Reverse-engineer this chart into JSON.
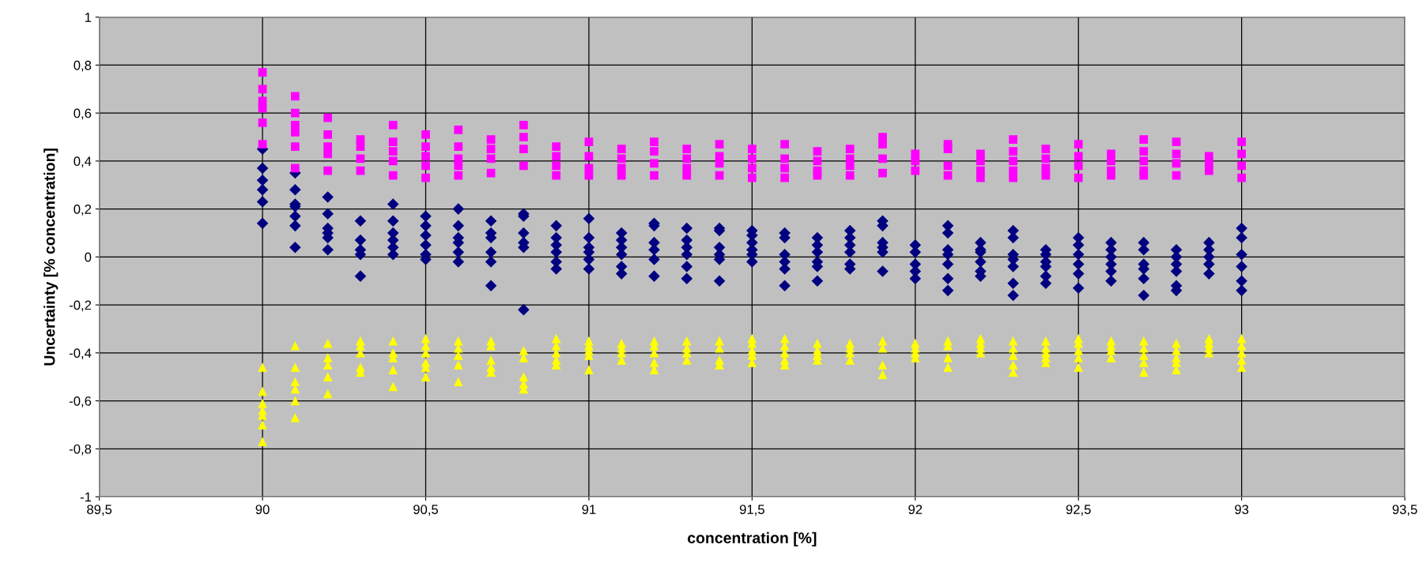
{
  "chart_data": {
    "type": "scatter",
    "xlabel": "concentration [%]",
    "ylabel": "Uncertainty [% concentration]",
    "xlim": [
      89.5,
      93.5
    ],
    "ylim": [
      -1,
      1
    ],
    "xticks": [
      {
        "value": 89.5,
        "label": "89,5"
      },
      90,
      {
        "value": 90.5,
        "label": "90,5"
      },
      91,
      {
        "value": 91.5,
        "label": "91,5"
      },
      92,
      {
        "value": 92.5,
        "label": "92,5"
      },
      93,
      {
        "value": 93.5,
        "label": "93,5"
      }
    ],
    "yticks": [
      -1,
      {
        "value": -0.8,
        "label": "-0,8"
      },
      {
        "value": -0.6,
        "label": "-0,6"
      },
      {
        "value": -0.4,
        "label": "-0,4"
      },
      {
        "value": -0.2,
        "label": "-0,2"
      },
      0,
      {
        "value": 0.2,
        "label": "0,2"
      },
      {
        "value": 0.4,
        "label": "0,4"
      },
      {
        "value": 0.6,
        "label": "0,6"
      },
      {
        "value": 0.8,
        "label": "0,8"
      },
      1
    ],
    "grid": true,
    "series": [
      {
        "color": "#000080",
        "marker": "diamond",
        "x": [
          90,
          90,
          90,
          90,
          90,
          90,
          90.1,
          90.1,
          90.1,
          90.1,
          90.1,
          90.1,
          90.1,
          90.2,
          90.2,
          90.2,
          90.2,
          90.2,
          90.2,
          90.3,
          90.3,
          90.3,
          90.3,
          90.3,
          90.4,
          90.4,
          90.4,
          90.4,
          90.4,
          90.4,
          90.5,
          90.5,
          90.5,
          90.5,
          90.5,
          90.5,
          90.6,
          90.6,
          90.6,
          90.6,
          90.6,
          90.6,
          90.7,
          90.7,
          90.7,
          90.7,
          90.7,
          90.7,
          90.8,
          90.8,
          90.8,
          90.8,
          90.8,
          90.8,
          90.9,
          90.9,
          90.9,
          90.9,
          90.9,
          90.9,
          91,
          91,
          91,
          91,
          91,
          91,
          91.1,
          91.1,
          91.1,
          91.1,
          91.1,
          91.1,
          91.2,
          91.2,
          91.2,
          91.2,
          91.2,
          91.2,
          91.3,
          91.3,
          91.3,
          91.3,
          91.3,
          91.3,
          91.4,
          91.4,
          91.4,
          91.4,
          91.4,
          91.4,
          91.5,
          91.5,
          91.5,
          91.5,
          91.5,
          91.5,
          91.6,
          91.6,
          91.6,
          91.6,
          91.6,
          91.6,
          91.7,
          91.7,
          91.7,
          91.7,
          91.7,
          91.7,
          91.8,
          91.8,
          91.8,
          91.8,
          91.8,
          91.8,
          91.9,
          91.9,
          91.9,
          91.9,
          91.9,
          91.9,
          92,
          92,
          92,
          92,
          92,
          92.1,
          92.1,
          92.1,
          92.1,
          92.1,
          92.1,
          92.1,
          92.2,
          92.2,
          92.2,
          92.2,
          92.2,
          92.2,
          92.3,
          92.3,
          92.3,
          92.3,
          92.3,
          92.3,
          92.3,
          92.4,
          92.4,
          92.4,
          92.4,
          92.4,
          92.4,
          92.5,
          92.5,
          92.5,
          92.5,
          92.5,
          92.5,
          92.6,
          92.6,
          92.6,
          92.6,
          92.6,
          92.6,
          92.7,
          92.7,
          92.7,
          92.7,
          92.7,
          92.7,
          92.8,
          92.8,
          92.8,
          92.8,
          92.8,
          92.8,
          92.9,
          92.9,
          92.9,
          92.9,
          92.9,
          93,
          93,
          93,
          93,
          93,
          93
        ],
        "values": [
          0.45,
          0.37,
          0.32,
          0.28,
          0.23,
          0.14,
          0.35,
          0.28,
          0.22,
          0.21,
          0.17,
          0.13,
          0.04,
          0.25,
          0.18,
          0.12,
          0.1,
          0.08,
          0.03,
          0.15,
          0.07,
          0.03,
          0.01,
          -0.08,
          0.22,
          0.15,
          0.1,
          0.07,
          0.04,
          0.01,
          0.17,
          0.13,
          0.09,
          0.05,
          0.01,
          -0.01,
          0.2,
          0.13,
          0.08,
          0.06,
          0.02,
          -0.02,
          0.15,
          0.1,
          0.08,
          0.02,
          -0.02,
          -0.12,
          0.18,
          0.17,
          0.1,
          0.06,
          0.04,
          -0.22,
          0.13,
          0.08,
          0.05,
          0.02,
          -0.02,
          -0.05,
          0.16,
          0.08,
          0.04,
          0.02,
          -0.01,
          -0.05,
          0.1,
          0.07,
          0.04,
          0.01,
          -0.04,
          -0.07,
          0.14,
          0.13,
          0.06,
          0.03,
          -0.01,
          -0.08,
          0.12,
          0.07,
          0.04,
          0.01,
          -0.04,
          -0.09,
          0.12,
          0.11,
          0.04,
          0.01,
          -0.01,
          -0.1,
          0.11,
          0.09,
          0.06,
          0.03,
          0.01,
          -0.02,
          0.1,
          0.08,
          0.01,
          -0.02,
          -0.05,
          -0.12,
          0.08,
          0.05,
          0.02,
          -0.02,
          -0.04,
          -0.1,
          0.11,
          0.08,
          0.05,
          0.02,
          -0.03,
          -0.05,
          0.15,
          0.13,
          0.06,
          0.04,
          0.02,
          -0.06,
          0.05,
          0.02,
          -0.03,
          -0.06,
          -0.09,
          0.13,
          0.1,
          0.03,
          0.01,
          -0.03,
          -0.09,
          -0.14,
          0.06,
          0.03,
          0.02,
          -0.02,
          -0.06,
          -0.08,
          0.11,
          0.08,
          0.01,
          -0.01,
          -0.04,
          -0.11,
          -0.16,
          0.03,
          0.01,
          -0.02,
          -0.04,
          -0.08,
          -0.11,
          0.08,
          0.05,
          0.01,
          -0.03,
          -0.07,
          -0.13,
          0.06,
          0.03,
          0.0,
          -0.03,
          -0.06,
          -0.1,
          0.06,
          0.03,
          -0.03,
          -0.05,
          -0.09,
          -0.16,
          0.03,
          0.0,
          -0.03,
          -0.06,
          -0.12,
          -0.14,
          0.06,
          0.03,
          0.0,
          -0.03,
          -0.07,
          0.12,
          0.08,
          0.01,
          -0.04,
          -0.1,
          -0.14
        ]
      },
      {
        "color": "#ff00ff",
        "marker": "square",
        "x": [
          90,
          90,
          90,
          90,
          90,
          90,
          90.1,
          90.1,
          90.1,
          90.1,
          90.1,
          90.1,
          90.2,
          90.2,
          90.2,
          90.2,
          90.2,
          90.3,
          90.3,
          90.3,
          90.3,
          90.4,
          90.4,
          90.4,
          90.4,
          90.4,
          90.5,
          90.5,
          90.5,
          90.5,
          90.5,
          90.6,
          90.6,
          90.6,
          90.6,
          90.6,
          90.7,
          90.7,
          90.7,
          90.7,
          90.8,
          90.8,
          90.8,
          90.8,
          90.9,
          90.9,
          90.9,
          90.9,
          91,
          91,
          91,
          91,
          91.1,
          91.1,
          91.1,
          91.1,
          91.2,
          91.2,
          91.2,
          91.2,
          91.3,
          91.3,
          91.3,
          91.3,
          91.4,
          91.4,
          91.4,
          91.4,
          91.5,
          91.5,
          91.5,
          91.5,
          91.6,
          91.6,
          91.6,
          91.6,
          91.7,
          91.7,
          91.7,
          91.7,
          91.8,
          91.8,
          91.8,
          91.8,
          91.9,
          91.9,
          91.9,
          91.9,
          92,
          92,
          92,
          92.1,
          92.1,
          92.1,
          92.1,
          92.2,
          92.2,
          92.2,
          92.2,
          92.3,
          92.3,
          92.3,
          92.3,
          92.3,
          92.4,
          92.4,
          92.4,
          92.4,
          92.5,
          92.5,
          92.5,
          92.5,
          92.6,
          92.6,
          92.6,
          92.6,
          92.7,
          92.7,
          92.7,
          92.7,
          92.7,
          92.8,
          92.8,
          92.8,
          92.8,
          92.9,
          92.9,
          92.9,
          93,
          93,
          93,
          93
        ],
        "values": [
          0.77,
          0.7,
          0.65,
          0.62,
          0.56,
          0.47,
          0.67,
          0.6,
          0.55,
          0.52,
          0.46,
          0.37,
          0.58,
          0.51,
          0.46,
          0.43,
          0.36,
          0.49,
          0.46,
          0.41,
          0.36,
          0.55,
          0.48,
          0.44,
          0.4,
          0.34,
          0.51,
          0.46,
          0.42,
          0.38,
          0.33,
          0.53,
          0.46,
          0.41,
          0.38,
          0.34,
          0.49,
          0.45,
          0.41,
          0.35,
          0.55,
          0.5,
          0.45,
          0.38,
          0.46,
          0.42,
          0.38,
          0.34,
          0.48,
          0.42,
          0.37,
          0.34,
          0.45,
          0.41,
          0.37,
          0.34,
          0.48,
          0.44,
          0.39,
          0.34,
          0.45,
          0.41,
          0.37,
          0.34,
          0.47,
          0.42,
          0.39,
          0.34,
          0.45,
          0.41,
          0.37,
          0.33,
          0.47,
          0.41,
          0.37,
          0.33,
          0.44,
          0.4,
          0.36,
          0.34,
          0.45,
          0.41,
          0.38,
          0.34,
          0.5,
          0.47,
          0.41,
          0.35,
          0.43,
          0.4,
          0.36,
          0.47,
          0.45,
          0.38,
          0.34,
          0.43,
          0.4,
          0.36,
          0.33,
          0.49,
          0.44,
          0.4,
          0.36,
          0.33,
          0.45,
          0.41,
          0.37,
          0.34,
          0.47,
          0.42,
          0.38,
          0.33,
          0.43,
          0.4,
          0.36,
          0.34,
          0.49,
          0.44,
          0.4,
          0.36,
          0.34,
          0.48,
          0.43,
          0.39,
          0.34,
          0.42,
          0.39,
          0.36,
          0.48,
          0.43,
          0.38,
          0.33
        ]
      },
      {
        "color": "#ffff00",
        "marker": "triangle",
        "x": [
          90,
          90,
          90,
          90,
          90,
          90,
          90,
          90.1,
          90.1,
          90.1,
          90.1,
          90.1,
          90.1,
          90.2,
          90.2,
          90.2,
          90.2,
          90.2,
          90.3,
          90.3,
          90.3,
          90.3,
          90.3,
          90.4,
          90.4,
          90.4,
          90.4,
          90.4,
          90.5,
          90.5,
          90.5,
          90.5,
          90.5,
          90.5,
          90.6,
          90.6,
          90.6,
          90.6,
          90.6,
          90.7,
          90.7,
          90.7,
          90.7,
          90.7,
          90.8,
          90.8,
          90.8,
          90.8,
          90.8,
          90.9,
          90.9,
          90.9,
          90.9,
          90.9,
          91,
          91,
          91,
          91,
          91,
          91.1,
          91.1,
          91.1,
          91.1,
          91.2,
          91.2,
          91.2,
          91.2,
          91.2,
          91.3,
          91.3,
          91.3,
          91.3,
          91.4,
          91.4,
          91.4,
          91.4,
          91.5,
          91.5,
          91.5,
          91.5,
          91.5,
          91.6,
          91.6,
          91.6,
          91.6,
          91.6,
          91.7,
          91.7,
          91.7,
          91.7,
          91.8,
          91.8,
          91.8,
          91.8,
          91.9,
          91.9,
          91.9,
          91.9,
          92,
          92,
          92,
          92,
          92.1,
          92.1,
          92.1,
          92.1,
          92.2,
          92.2,
          92.2,
          92.2,
          92.3,
          92.3,
          92.3,
          92.3,
          92.3,
          92.4,
          92.4,
          92.4,
          92.4,
          92.4,
          92.5,
          92.5,
          92.5,
          92.5,
          92.5,
          92.6,
          92.6,
          92.6,
          92.6,
          92.7,
          92.7,
          92.7,
          92.7,
          92.7,
          92.8,
          92.8,
          92.8,
          92.8,
          92.8,
          92.9,
          92.9,
          92.9,
          92.9,
          93,
          93,
          93,
          93,
          93
        ],
        "values": [
          -0.46,
          -0.56,
          -0.61,
          -0.64,
          -0.66,
          -0.7,
          -0.77,
          -0.37,
          -0.46,
          -0.52,
          -0.55,
          -0.6,
          -0.67,
          -0.36,
          -0.42,
          -0.45,
          -0.5,
          -0.57,
          -0.35,
          -0.37,
          -0.4,
          -0.46,
          -0.48,
          -0.35,
          -0.4,
          -0.42,
          -0.47,
          -0.54,
          -0.34,
          -0.37,
          -0.4,
          -0.44,
          -0.46,
          -0.5,
          -0.35,
          -0.38,
          -0.41,
          -0.45,
          -0.52,
          -0.35,
          -0.37,
          -0.43,
          -0.46,
          -0.48,
          -0.39,
          -0.42,
          -0.5,
          -0.53,
          -0.55,
          -0.34,
          -0.37,
          -0.4,
          -0.43,
          -0.45,
          -0.35,
          -0.37,
          -0.39,
          -0.41,
          -0.47,
          -0.36,
          -0.38,
          -0.4,
          -0.43,
          -0.35,
          -0.37,
          -0.4,
          -0.44,
          -0.47,
          -0.35,
          -0.38,
          -0.4,
          -0.43,
          -0.35,
          -0.38,
          -0.43,
          -0.45,
          -0.34,
          -0.36,
          -0.39,
          -0.41,
          -0.44,
          -0.34,
          -0.37,
          -0.4,
          -0.43,
          -0.45,
          -0.36,
          -0.39,
          -0.41,
          -0.43,
          -0.36,
          -0.38,
          -0.4,
          -0.43,
          -0.35,
          -0.38,
          -0.45,
          -0.49,
          -0.36,
          -0.38,
          -0.4,
          -0.42,
          -0.35,
          -0.37,
          -0.42,
          -0.46,
          -0.34,
          -0.36,
          -0.38,
          -0.4,
          -0.35,
          -0.38,
          -0.41,
          -0.45,
          -0.48,
          -0.35,
          -0.38,
          -0.4,
          -0.42,
          -0.44,
          -0.34,
          -0.36,
          -0.39,
          -0.42,
          -0.46,
          -0.35,
          -0.37,
          -0.39,
          -0.42,
          -0.35,
          -0.38,
          -0.41,
          -0.44,
          -0.48,
          -0.36,
          -0.39,
          -0.42,
          -0.44,
          -0.47,
          -0.34,
          -0.36,
          -0.38,
          -0.4,
          -0.34,
          -0.37,
          -0.4,
          -0.43,
          -0.46
        ]
      }
    ]
  }
}
